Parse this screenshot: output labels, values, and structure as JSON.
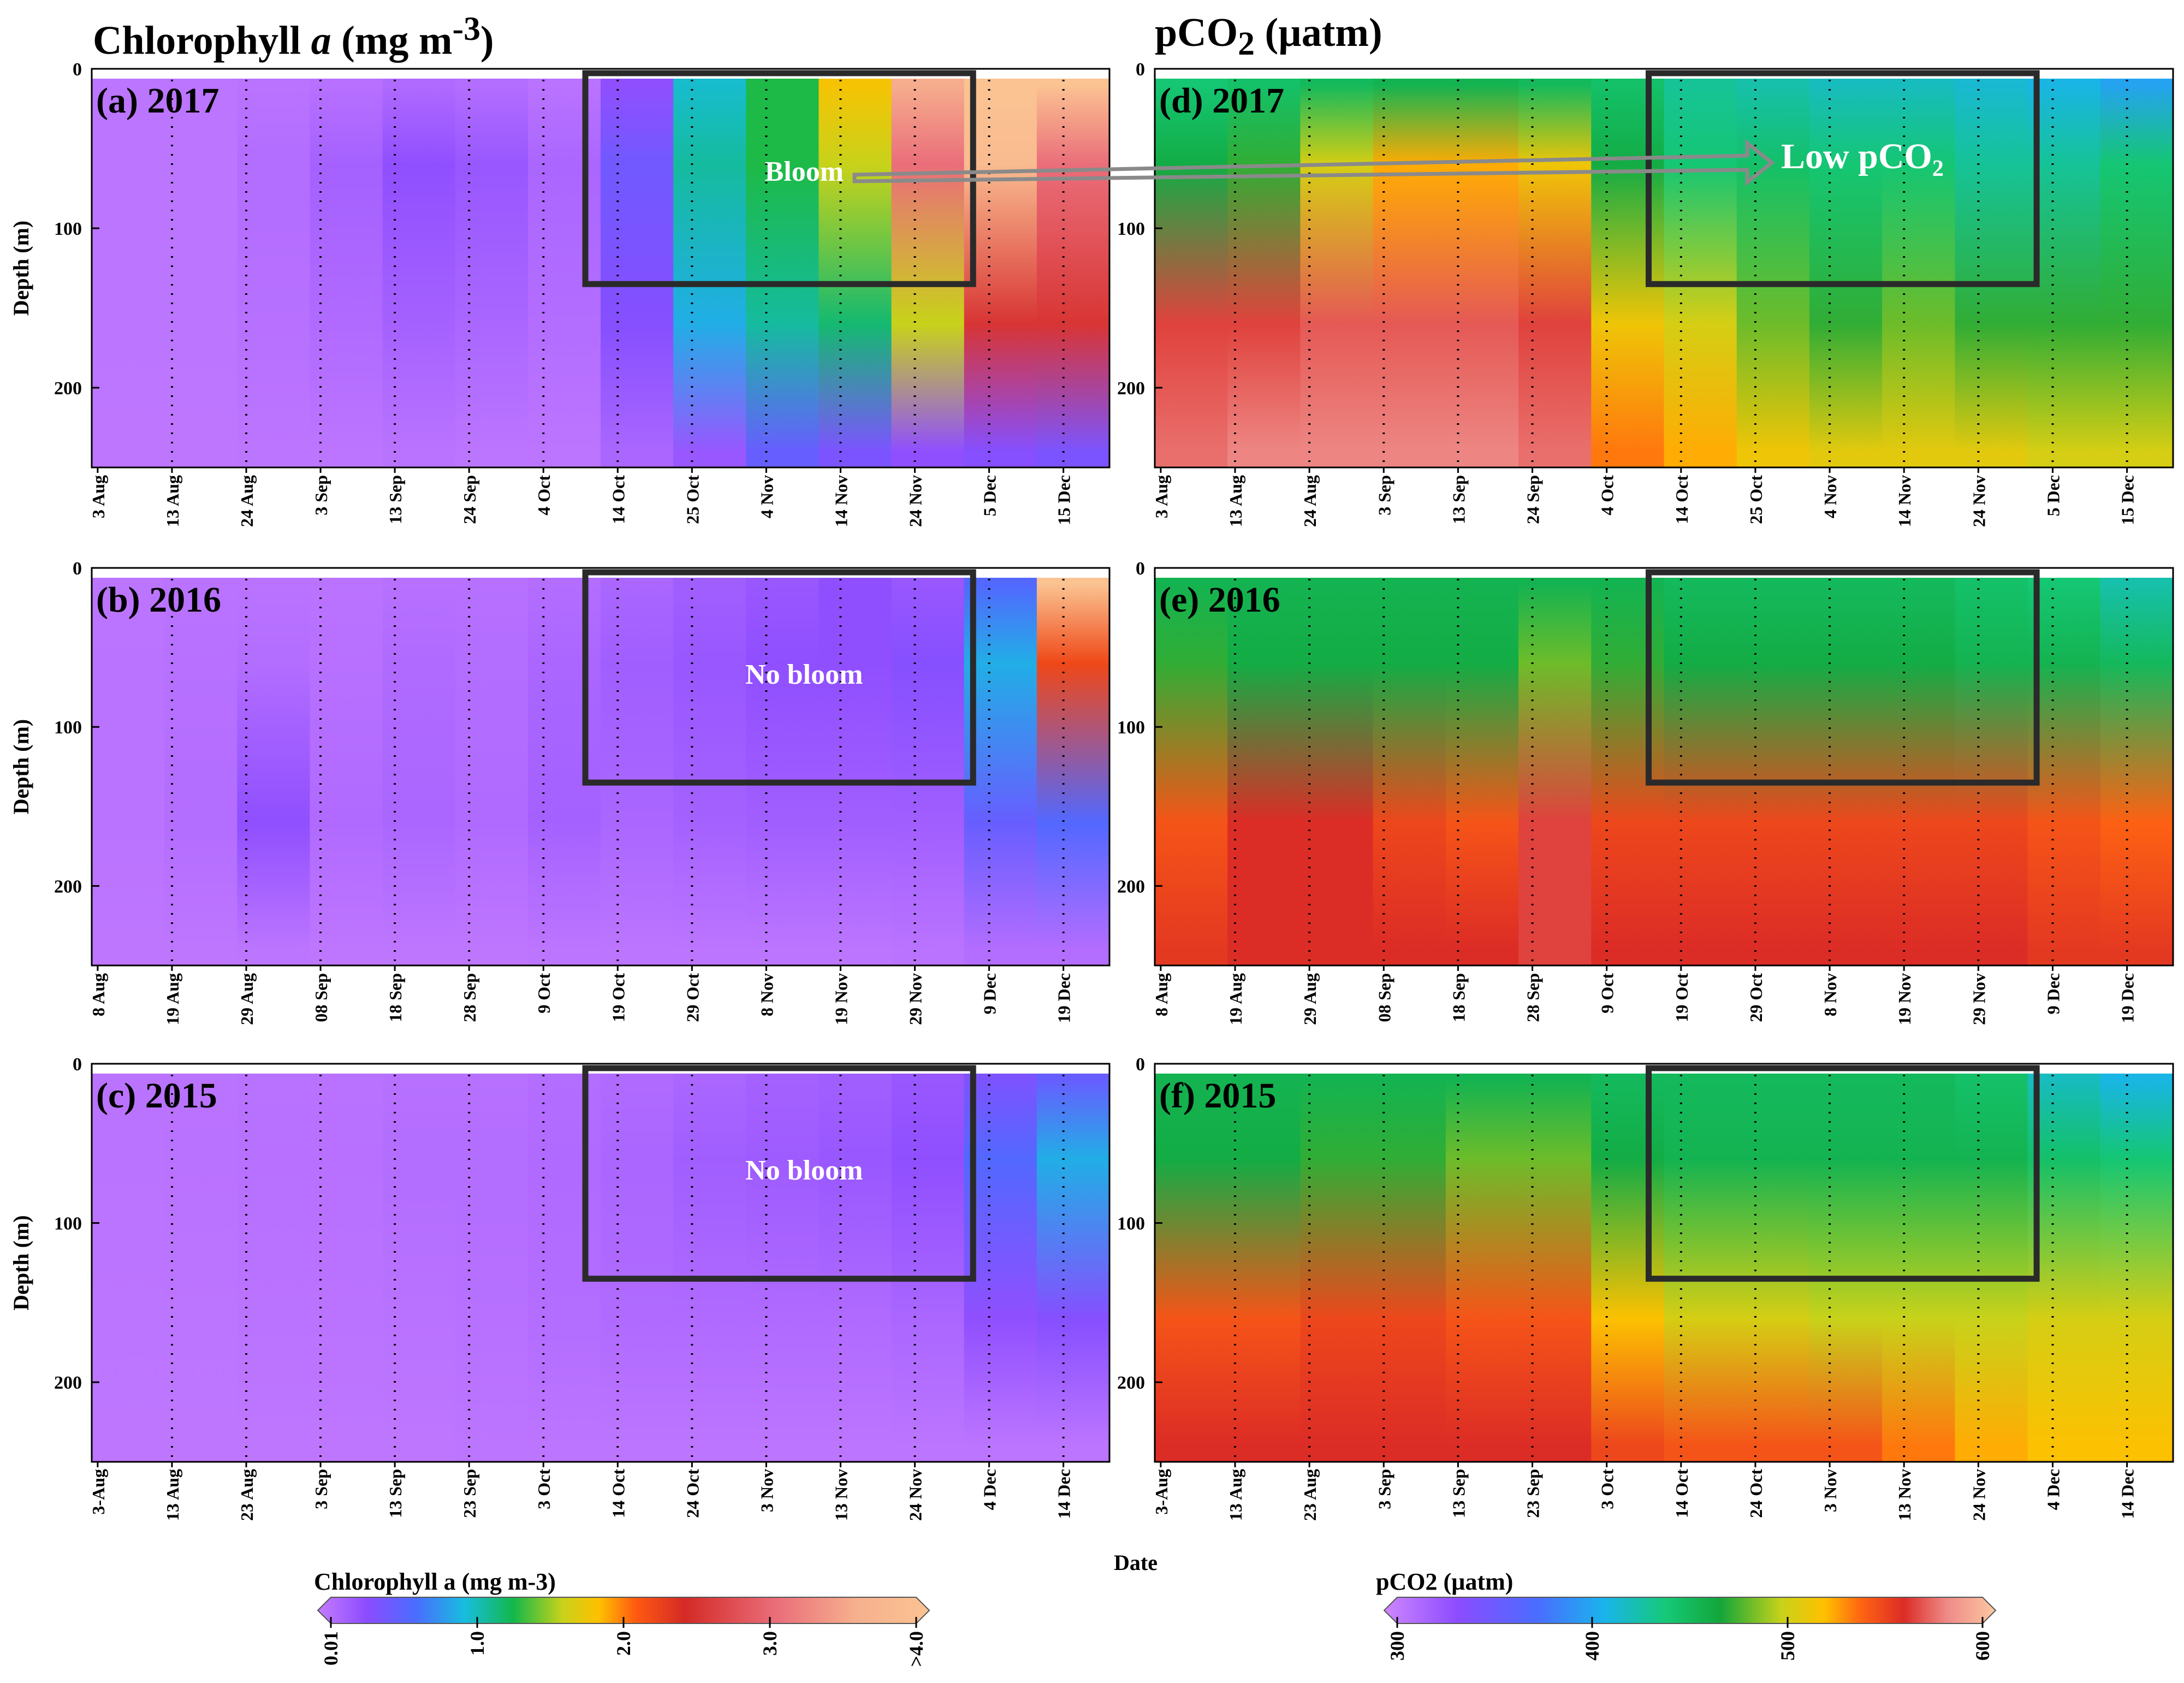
{
  "titles": {
    "left": "Chlorophyll a (mg m-3)",
    "right": "pCO2 (µatm)"
  },
  "chart_data": [
    {
      "type": "heatmap",
      "panel": "(a) 2017",
      "variable": "Chlorophyll a",
      "ylabel": "Depth (m)",
      "y_ticks": [
        0,
        100,
        200
      ],
      "ylim": [
        250,
        0
      ],
      "x_ticks": [
        "3 Aug",
        "13 Aug",
        "24 Aug",
        "3 Sep",
        "13 Sep",
        "24 Sep",
        "4 Oct",
        "14 Oct",
        "25 Oct",
        "4 Nov",
        "14 Nov",
        "24 Nov",
        "5 Dec",
        "15 Dec"
      ],
      "box": {
        "from": "~10 Oct",
        "to": "~1 Dec",
        "depth": [
          0,
          135
        ]
      },
      "annotation": "Bloom",
      "profiles": [
        [
          0.05,
          0.05,
          0.05,
          0.04
        ],
        [
          0.05,
          0.05,
          0.05,
          0.04
        ],
        [
          0.06,
          0.1,
          0.08,
          0.05
        ],
        [
          0.08,
          0.18,
          0.12,
          0.05
        ],
        [
          0.12,
          0.3,
          0.18,
          0.06
        ],
        [
          0.1,
          0.25,
          0.15,
          0.05
        ],
        [
          0.06,
          0.15,
          0.1,
          0.05
        ],
        [
          0.3,
          0.45,
          0.35,
          0.15
        ],
        [
          1.0,
          1.1,
          0.9,
          0.25
        ],
        [
          1.3,
          1.3,
          1.1,
          0.5
        ],
        [
          1.8,
          1.6,
          1.2,
          0.4
        ],
        [
          3.5,
          3.0,
          1.6,
          0.3
        ],
        [
          4.0,
          3.8,
          2.5,
          0.35
        ],
        [
          4.0,
          3.0,
          2.5,
          0.4
        ]
      ]
    },
    {
      "type": "heatmap",
      "panel": "(b) 2016",
      "variable": "Chlorophyll a",
      "ylabel": "Depth (m)",
      "y_ticks": [
        0,
        100,
        200
      ],
      "ylim": [
        250,
        0
      ],
      "x_ticks": [
        "8 Aug",
        "19 Aug",
        "29 Aug",
        "08 Sep",
        "18 Sep",
        "28 Sep",
        "9 Oct",
        "19 Oct",
        "29 Oct",
        "8 Nov",
        "19 Nov",
        "29 Nov",
        "9 Dec",
        "19 Dec"
      ],
      "box": {
        "from": "~14 Oct",
        "to": "~5 Dec",
        "depth": [
          0,
          135
        ]
      },
      "annotation": "No bloom",
      "profiles": [
        [
          0.05,
          0.06,
          0.06,
          0.04
        ],
        [
          0.06,
          0.08,
          0.1,
          0.04
        ],
        [
          0.06,
          0.1,
          0.3,
          0.05
        ],
        [
          0.06,
          0.08,
          0.12,
          0.04
        ],
        [
          0.08,
          0.12,
          0.15,
          0.04
        ],
        [
          0.08,
          0.1,
          0.12,
          0.04
        ],
        [
          0.1,
          0.15,
          0.18,
          0.05
        ],
        [
          0.15,
          0.2,
          0.15,
          0.05
        ],
        [
          0.2,
          0.25,
          0.18,
          0.05
        ],
        [
          0.25,
          0.3,
          0.2,
          0.05
        ],
        [
          0.3,
          0.3,
          0.2,
          0.05
        ],
        [
          0.25,
          0.35,
          0.2,
          0.06
        ],
        [
          0.6,
          0.9,
          0.5,
          0.1
        ],
        [
          4.0,
          2.2,
          0.6,
          0.1
        ]
      ]
    },
    {
      "type": "heatmap",
      "panel": "(c) 2015",
      "variable": "Chlorophyll a",
      "ylabel": "Depth (m)",
      "y_ticks": [
        0,
        100,
        200
      ],
      "ylim": [
        250,
        0
      ],
      "x_ticks": [
        "3-Aug",
        "13 Aug",
        "23 Aug",
        "3 Sep",
        "13 Sep",
        "23 Sep",
        "3 Oct",
        "14 Oct",
        "24 Oct",
        "3 Nov",
        "13 Nov",
        "24 Nov",
        "4 Dec",
        "14 Dec"
      ],
      "box": {
        "from": "~10 Oct",
        "to": "~1 Dec",
        "depth": [
          0,
          135
        ]
      },
      "annotation": "No bloom",
      "profiles": [
        [
          0.06,
          0.06,
          0.05,
          0.04
        ],
        [
          0.06,
          0.07,
          0.05,
          0.04
        ],
        [
          0.07,
          0.08,
          0.06,
          0.04
        ],
        [
          0.07,
          0.08,
          0.06,
          0.04
        ],
        [
          0.08,
          0.1,
          0.07,
          0.04
        ],
        [
          0.08,
          0.1,
          0.08,
          0.05
        ],
        [
          0.1,
          0.12,
          0.1,
          0.05
        ],
        [
          0.12,
          0.15,
          0.12,
          0.05
        ],
        [
          0.15,
          0.2,
          0.12,
          0.05
        ],
        [
          0.18,
          0.22,
          0.12,
          0.05
        ],
        [
          0.2,
          0.25,
          0.12,
          0.05
        ],
        [
          0.25,
          0.3,
          0.15,
          0.05
        ],
        [
          0.4,
          0.6,
          0.3,
          0.05
        ],
        [
          0.5,
          0.9,
          0.35,
          0.05
        ]
      ]
    },
    {
      "type": "heatmap",
      "panel": "(d) 2017",
      "variable": "pCO2",
      "y_ticks": [
        0,
        100,
        200
      ],
      "ylim": [
        250,
        0
      ],
      "x_ticks": [
        "3 Aug",
        "13 Aug",
        "24 Aug",
        "3 Sep",
        "13 Sep",
        "24 Sep",
        "4 Oct",
        "14 Oct",
        "25 Oct",
        "4 Nov",
        "14 Nov",
        "24 Nov",
        "5 Dec",
        "15 Dec"
      ],
      "box": {
        "from": "~10 Oct",
        "to": "~1 Dec",
        "depth": [
          0,
          135
        ]
      },
      "annotation": "Low pCO2",
      "profiles": [
        [
          440,
          460,
          560,
          570
        ],
        [
          445,
          470,
          560,
          575
        ],
        [
          450,
          500,
          565,
          575
        ],
        [
          455,
          520,
          565,
          575
        ],
        [
          455,
          520,
          565,
          575
        ],
        [
          450,
          510,
          560,
          570
        ],
        [
          445,
          460,
          510,
          530
        ],
        [
          430,
          440,
          500,
          520
        ],
        [
          425,
          445,
          480,
          510
        ],
        [
          420,
          440,
          470,
          505
        ],
        [
          420,
          440,
          480,
          505
        ],
        [
          415,
          430,
          470,
          505
        ],
        [
          410,
          430,
          470,
          500
        ],
        [
          400,
          440,
          470,
          500
        ]
      ]
    },
    {
      "type": "heatmap",
      "panel": "(e) 2016",
      "variable": "pCO2",
      "y_ticks": [
        0,
        100,
        200
      ],
      "ylim": [
        250,
        0
      ],
      "x_ticks": [
        "8 Aug",
        "19 Aug",
        "29 Aug",
        "08 Sep",
        "18 Sep",
        "28 Sep",
        "9 Oct",
        "19 Oct",
        "29 Oct",
        "8 Nov",
        "19 Nov",
        "29 Nov",
        "9 Dec",
        "19 Dec"
      ],
      "box": {
        "from": "~14 Oct",
        "to": "~5 Dec",
        "depth": [
          0,
          135
        ]
      },
      "annotation": "",
      "profiles": [
        [
          455,
          470,
          540,
          550
        ],
        [
          455,
          460,
          555,
          555
        ],
        [
          455,
          460,
          555,
          555
        ],
        [
          455,
          460,
          545,
          555
        ],
        [
          455,
          460,
          540,
          555
        ],
        [
          455,
          480,
          560,
          560
        ],
        [
          455,
          470,
          545,
          555
        ],
        [
          450,
          460,
          545,
          555
        ],
        [
          450,
          460,
          545,
          555
        ],
        [
          450,
          460,
          545,
          555
        ],
        [
          450,
          460,
          545,
          555
        ],
        [
          445,
          455,
          545,
          555
        ],
        [
          440,
          455,
          540,
          550
        ],
        [
          425,
          450,
          535,
          550
        ]
      ]
    },
    {
      "type": "heatmap",
      "panel": "(f) 2015",
      "variable": "pCO2",
      "y_ticks": [
        0,
        100,
        200
      ],
      "ylim": [
        250,
        0
      ],
      "x_ticks": [
        "3-Aug",
        "13 Aug",
        "23 Aug",
        "3 Sep",
        "13 Sep",
        "23 Sep",
        "3 Oct",
        "14 Oct",
        "24 Oct",
        "3 Nov",
        "13 Nov",
        "24 Nov",
        "4 Dec",
        "14 Dec"
      ],
      "box": {
        "from": "~10 Oct",
        "to": "~1 Dec",
        "depth": [
          0,
          135
        ]
      },
      "annotation": "",
      "profiles": [
        [
          455,
          460,
          540,
          555
        ],
        [
          455,
          460,
          540,
          555
        ],
        [
          455,
          470,
          545,
          555
        ],
        [
          455,
          470,
          545,
          555
        ],
        [
          455,
          480,
          540,
          555
        ],
        [
          455,
          480,
          540,
          555
        ],
        [
          450,
          460,
          515,
          545
        ],
        [
          450,
          455,
          500,
          540
        ],
        [
          450,
          455,
          500,
          540
        ],
        [
          450,
          455,
          495,
          540
        ],
        [
          450,
          455,
          495,
          530
        ],
        [
          445,
          455,
          495,
          520
        ],
        [
          420,
          445,
          500,
          515
        ],
        [
          410,
          440,
          500,
          515
        ]
      ]
    }
  ],
  "xlabel": "Date",
  "colorbars": {
    "chl": {
      "title": "Chlorophyll a (mg m-3)",
      "ticks": [
        "0.01",
        "1.0",
        "2.0",
        "3.0",
        ">4.0"
      ]
    },
    "pco2": {
      "title": "pCO2 (µatm)",
      "ticks": [
        "300",
        "400",
        "500",
        "600"
      ]
    }
  }
}
